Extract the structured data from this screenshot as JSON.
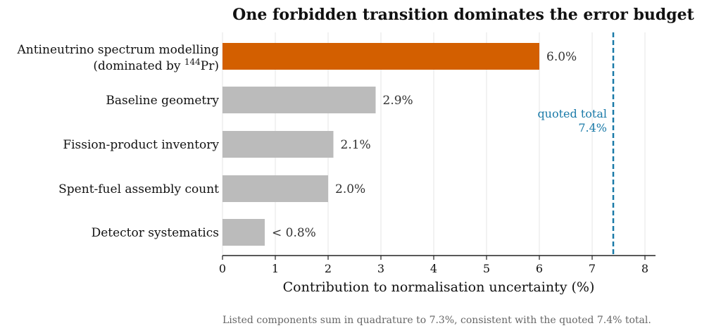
{
  "chart_data": {
    "type": "bar",
    "orientation": "horizontal",
    "title": "One forbidden transition dominates the error budget",
    "xlabel": "Contribution to normalisation uncertainty (%)",
    "xlim": [
      0,
      8.2
    ],
    "xticks": [
      0,
      1,
      2,
      3,
      4,
      5,
      6,
      7,
      8
    ],
    "grid": "vertical",
    "categories": [
      {
        "line1": "Antineutrino spectrum modelling",
        "line2_pre": "(dominated by ",
        "line2_sup": "144",
        "line2_post": "Pr)"
      },
      {
        "line1": "Baseline geometry"
      },
      {
        "line1": "Fission-product inventory"
      },
      {
        "line1": "Spent-fuel assembly count"
      },
      {
        "line1": "Detector systematics"
      }
    ],
    "values": [
      6.0,
      2.9,
      2.1,
      2.0,
      0.8
    ],
    "value_labels": [
      "6.0%",
      "2.9%",
      "2.1%",
      "2.0%",
      "< 0.8%"
    ],
    "highlight_index": 0,
    "colors": {
      "highlight": "#d35f00",
      "default": "#bbbbbb",
      "reference": "#1a7aa8",
      "grid": "#e6e6e6",
      "axis": "#222222"
    },
    "reference_line": {
      "value": 7.4,
      "label_line1": "quoted total",
      "label_line2": "7.4%"
    },
    "footnote": "Listed components sum in quadrature to 7.3%, consistent with the quoted 7.4% total."
  }
}
